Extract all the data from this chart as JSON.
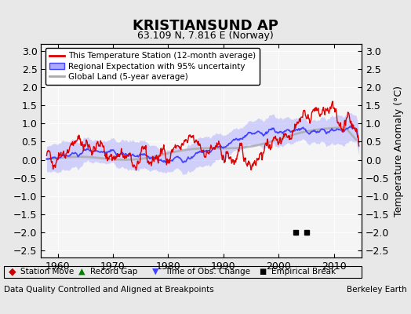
{
  "title": "KRISTIANSUND AP",
  "subtitle": "63.109 N, 7.816 E (Norway)",
  "ylabel": "Temperature Anomaly (°C)",
  "xlabel_footer": "Data Quality Controlled and Aligned at Breakpoints",
  "footer_right": "Berkeley Earth",
  "ylim": [
    -2.7,
    3.2
  ],
  "xlim": [
    1957,
    2015
  ],
  "yticks": [
    -2.5,
    -2,
    -1.5,
    -1,
    -0.5,
    0,
    0.5,
    1,
    1.5,
    2,
    2.5,
    3
  ],
  "xticks": [
    1960,
    1970,
    1980,
    1990,
    2000,
    2010
  ],
  "bg_color": "#e8e8e8",
  "plot_bg_color": "#f5f5f5",
  "red_color": "#dd0000",
  "blue_color": "#4444ff",
  "blue_fill_color": "#aaaaff",
  "gray_color": "#aaaaaa",
  "empirical_break_years": [
    2003,
    2005
  ],
  "empirical_break_values": [
    -2.0,
    -2.0
  ],
  "seed": 42
}
